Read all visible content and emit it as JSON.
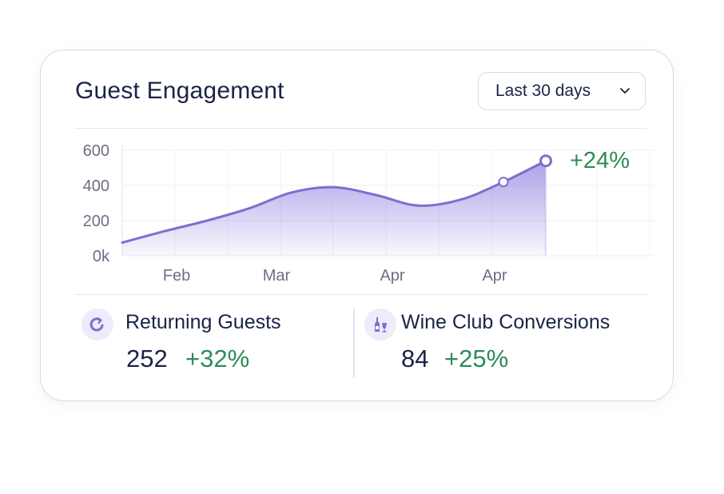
{
  "card": {
    "title": "Guest Engagement",
    "range_selector": {
      "value": "Last 30 days"
    }
  },
  "chart_data": {
    "type": "area",
    "x_tick_labels": [
      "Feb",
      "Mar",
      "Apr",
      "Apr"
    ],
    "y_tick_labels": [
      "600",
      "400",
      "200",
      "0k"
    ],
    "ylim": [
      0,
      600
    ],
    "points": [
      {
        "x": 0,
        "y": 75
      },
      {
        "x": 1,
        "y": 140
      },
      {
        "x": 2,
        "y": 200
      },
      {
        "x": 3,
        "y": 270
      },
      {
        "x": 4,
        "y": 360
      },
      {
        "x": 5,
        "y": 390
      },
      {
        "x": 6,
        "y": 345
      },
      {
        "x": 7,
        "y": 285
      },
      {
        "x": 8,
        "y": 320
      },
      {
        "x": 9,
        "y": 420
      },
      {
        "x": 10,
        "y": 540
      }
    ],
    "markers": [
      9,
      10
    ],
    "change_label": "+24%",
    "grid": true,
    "colors": {
      "line": "#7b6fd0",
      "fill": "#8f84e0",
      "change": "#2e8b57"
    }
  },
  "stats": [
    {
      "label": "Returning Guests",
      "value": "252",
      "change": "+32%",
      "icon": "refresh-icon"
    },
    {
      "label": "Wine Club Conversions",
      "value": "84",
      "change": "+25%",
      "icon": "wine-bottle-glass-icon"
    }
  ],
  "colors": {
    "accent": "#7b6fd0",
    "positive": "#2e8b57",
    "text": "#1b2347",
    "border": "#d9d6ea"
  }
}
